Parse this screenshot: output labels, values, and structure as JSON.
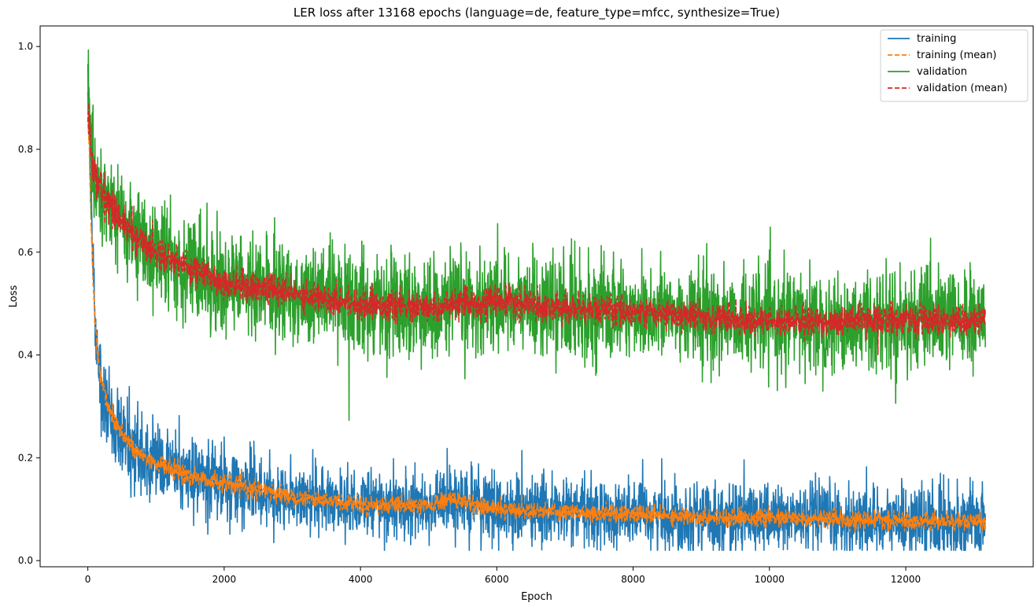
{
  "chart_data": {
    "type": "line",
    "title": "LER loss after 13168 epochs (language=de, feature_type=mfcc, synthesize=True)",
    "xlabel": "Epoch",
    "ylabel": "Loss",
    "xlim": [
      -700,
      13870
    ],
    "ylim": [
      -0.012,
      1.04
    ],
    "x_ticks": [
      0,
      2000,
      4000,
      6000,
      8000,
      10000,
      12000
    ],
    "y_ticks": [
      0.0,
      0.2,
      0.4,
      0.6,
      0.8,
      1.0
    ],
    "y_tick_labels": [
      "0.0",
      "0.2",
      "0.4",
      "0.6",
      "0.8",
      "1.0"
    ],
    "grid": false,
    "legend_position": "top-right",
    "n_epochs": 13168,
    "series": [
      {
        "name": "training",
        "color": "#1f77b4",
        "style": "solid",
        "anchor_x": [
          0,
          30,
          60,
          100,
          150,
          200,
          300,
          400,
          500,
          700,
          1000,
          1500,
          2000,
          3000,
          4000,
          5000,
          5300,
          6000,
          7000,
          8000,
          9000,
          10000,
          11000,
          12000,
          13168
        ],
        "anchor_y": [
          0.93,
          0.76,
          0.62,
          0.48,
          0.4,
          0.35,
          0.3,
          0.27,
          0.25,
          0.21,
          0.19,
          0.165,
          0.15,
          0.125,
          0.11,
          0.105,
          0.12,
          0.1,
          0.095,
          0.09,
          0.085,
          0.083,
          0.08,
          0.077,
          0.075
        ],
        "noise": [
          0.03,
          0.03,
          0.03,
          0.035,
          0.04,
          0.04,
          0.04,
          0.04,
          0.04,
          0.04,
          0.035,
          0.035,
          0.035,
          0.033,
          0.033,
          0.033,
          0.035,
          0.033,
          0.033,
          0.033,
          0.033,
          0.033,
          0.033,
          0.033,
          0.033
        ]
      },
      {
        "name": "training (mean)",
        "color": "#ff7f0e",
        "style": "dashed",
        "anchor_x": [
          0,
          30,
          60,
          100,
          150,
          200,
          300,
          400,
          500,
          700,
          1000,
          1500,
          2000,
          3000,
          4000,
          5000,
          5300,
          6000,
          7000,
          8000,
          9000,
          10000,
          11000,
          12000,
          13168
        ],
        "anchor_y": [
          0.91,
          0.75,
          0.61,
          0.47,
          0.4,
          0.35,
          0.3,
          0.27,
          0.25,
          0.21,
          0.19,
          0.165,
          0.15,
          0.125,
          0.11,
          0.105,
          0.12,
          0.1,
          0.095,
          0.09,
          0.085,
          0.083,
          0.08,
          0.077,
          0.075
        ],
        "noise": [
          0.015,
          0.015,
          0.015,
          0.013,
          0.012,
          0.011,
          0.011,
          0.01,
          0.01,
          0.01,
          0.009,
          0.009,
          0.009,
          0.008,
          0.008,
          0.008,
          0.009,
          0.008,
          0.008,
          0.008,
          0.008,
          0.008,
          0.008,
          0.008,
          0.008
        ]
      },
      {
        "name": "validation",
        "color": "#2ca02c",
        "style": "solid",
        "anchor_x": [
          0,
          50,
          100,
          200,
          300,
          500,
          700,
          1000,
          1500,
          2000,
          3000,
          4000,
          5000,
          6000,
          7000,
          8000,
          9000,
          10000,
          11000,
          12000,
          13168
        ],
        "anchor_y": [
          0.9,
          0.78,
          0.75,
          0.72,
          0.7,
          0.66,
          0.63,
          0.6,
          0.57,
          0.54,
          0.52,
          0.5,
          0.49,
          0.505,
          0.49,
          0.485,
          0.475,
          0.465,
          0.465,
          0.47,
          0.465
        ],
        "noise": [
          0.05,
          0.05,
          0.05,
          0.05,
          0.05,
          0.05,
          0.05,
          0.05,
          0.05,
          0.05,
          0.048,
          0.048,
          0.048,
          0.048,
          0.048,
          0.048,
          0.048,
          0.048,
          0.048,
          0.048,
          0.048
        ]
      },
      {
        "name": "validation (mean)",
        "color": "#d62728",
        "style": "dashed",
        "anchor_x": [
          0,
          50,
          100,
          200,
          300,
          500,
          700,
          1000,
          1500,
          2000,
          3000,
          4000,
          5000,
          6000,
          7000,
          8000,
          9000,
          10000,
          11000,
          12000,
          13168
        ],
        "anchor_y": [
          0.89,
          0.78,
          0.75,
          0.72,
          0.7,
          0.66,
          0.63,
          0.6,
          0.57,
          0.54,
          0.52,
          0.5,
          0.49,
          0.505,
          0.49,
          0.485,
          0.475,
          0.465,
          0.465,
          0.47,
          0.465
        ],
        "noise": [
          0.02,
          0.02,
          0.02,
          0.018,
          0.018,
          0.016,
          0.016,
          0.015,
          0.015,
          0.015,
          0.014,
          0.014,
          0.014,
          0.014,
          0.014,
          0.014,
          0.014,
          0.014,
          0.014,
          0.014,
          0.014
        ]
      }
    ]
  }
}
